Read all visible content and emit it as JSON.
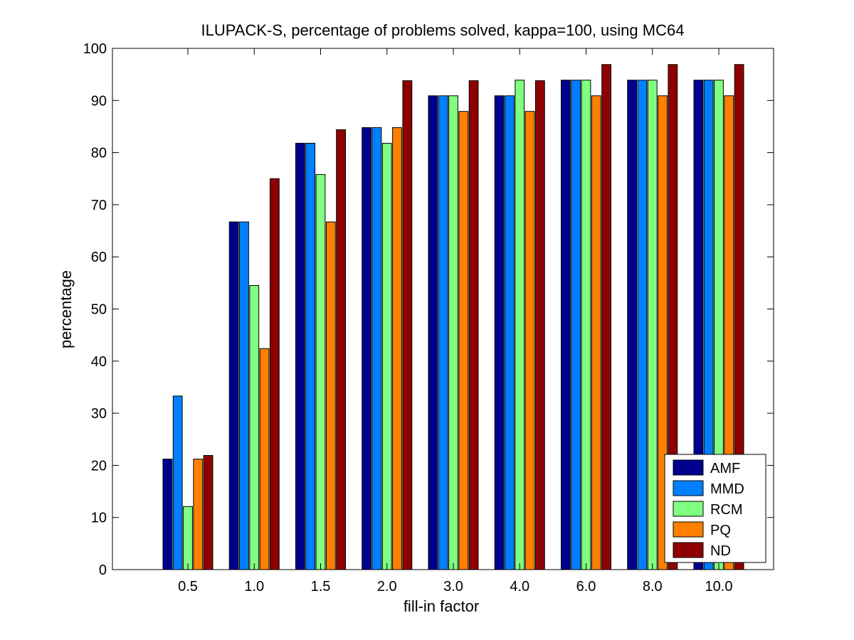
{
  "chart_data": {
    "type": "bar",
    "title": "ILUPACK-S, percentage of problems solved, kappa=100, using MC64",
    "xlabel": "fill-in factor",
    "ylabel": "percentage",
    "ylim": [
      0,
      100
    ],
    "yticks": [
      0,
      10,
      20,
      30,
      40,
      50,
      60,
      70,
      80,
      90,
      100
    ],
    "categories": [
      "0.5",
      "1.0",
      "1.5",
      "2.0",
      "3.0",
      "4.0",
      "6.0",
      "8.0",
      "10.0"
    ],
    "grid": false,
    "legend_position": "bottom-right",
    "series": [
      {
        "name": "AMF",
        "color": "#00008f",
        "values": [
          21.2,
          66.7,
          81.8,
          84.8,
          90.9,
          90.9,
          93.9,
          93.9,
          93.9
        ]
      },
      {
        "name": "MMD",
        "color": "#0080ff",
        "values": [
          33.3,
          66.7,
          81.8,
          84.8,
          90.9,
          90.9,
          93.9,
          93.9,
          93.9
        ]
      },
      {
        "name": "RCM",
        "color": "#80ff80",
        "values": [
          12.1,
          54.5,
          75.8,
          81.8,
          90.9,
          93.9,
          93.9,
          93.9,
          93.9
        ]
      },
      {
        "name": "PQ",
        "color": "#ff8000",
        "values": [
          21.2,
          42.4,
          66.7,
          84.8,
          87.9,
          87.9,
          90.9,
          90.9,
          90.9
        ]
      },
      {
        "name": "ND",
        "color": "#8f0000",
        "values": [
          21.9,
          75.0,
          84.4,
          93.8,
          93.8,
          93.8,
          96.9,
          96.9,
          96.9
        ]
      }
    ]
  }
}
